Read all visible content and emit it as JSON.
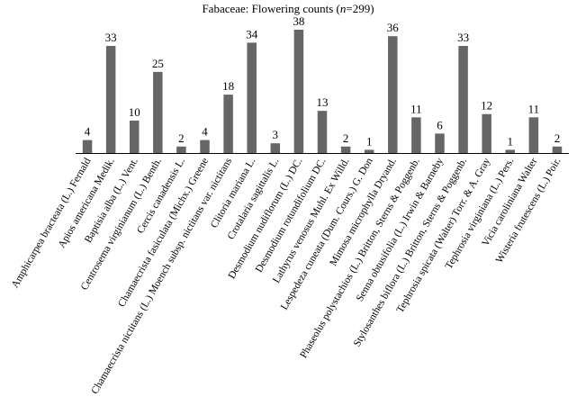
{
  "chart_data": {
    "type": "bar",
    "title_prefix": "Fabaceae: Flowering counts (",
    "title_n_symbol": "n",
    "title_suffix": "=299)",
    "xlabel": "",
    "ylabel": "",
    "ylim": [
      0,
      38
    ],
    "grid": false,
    "legend": "none",
    "bar_color": "#666666",
    "categories": [
      "Amphicarpea bracteata (L.) Fernald",
      "Apios americana Medik.",
      "Baptisia alba (L.) Vent.",
      "Centrosema virginianum (L.) Benth.",
      "Cercis canadensis L.",
      "Chamaecrista fasiculata (Michx.) Greene",
      "Chamaecrista nictitans (L.) Moench subsp. nictitans var. nictitans",
      "Clitoria mariana L.",
      "Crotalaria sagittalis L.",
      "Desmodium nudiflorum (L.) DC.",
      "Desmodium rotundifolium DC.",
      "Lathyrus venosus Muhl. Ex Willd.",
      "Lespedeza cuneata (Dum. Cours.) G. Don",
      "Mimosa microphylla Dryand.",
      "Phaseolus polystachios (L.) Britton, Sterns & Poggenb.",
      "Senna obtusifolia (L.) Irwin & Barneby",
      "Stylosanthes biflora (L.) Britton, Sterns & Poggenb.",
      "Tephrosia spicata (Walter) Torr. & A. Gray",
      "Tephrosia virginiana (L.) Pers.",
      "Vicia caroliniana Walter",
      "Wisteria frutescens (L.) Poir."
    ],
    "values": [
      4,
      33,
      10,
      25,
      2,
      4,
      18,
      34,
      3,
      38,
      13,
      2,
      1,
      36,
      11,
      6,
      33,
      12,
      1,
      11,
      2
    ]
  }
}
